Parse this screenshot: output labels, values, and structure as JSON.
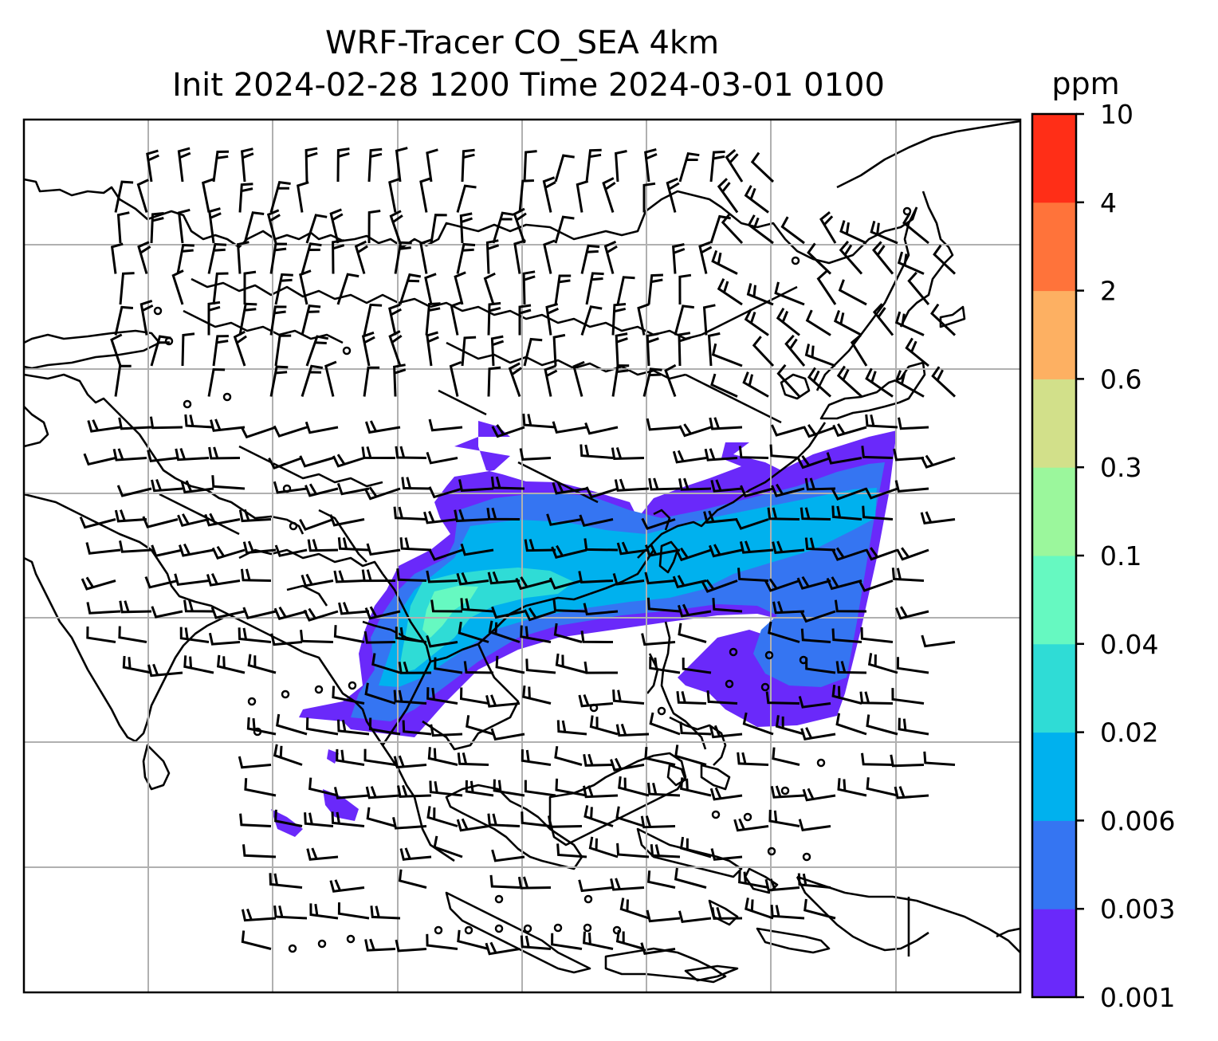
{
  "title": {
    "line1": "WRF-Tracer CO_SEA 4km",
    "line2": "Init 2024-02-28 1200 Time 2024-03-01 0100"
  },
  "colorbar": {
    "unit": "ppm",
    "levels": [
      "0.001",
      "0.003",
      "0.006",
      "0.02",
      "0.04",
      "0.1",
      "0.3",
      "0.6",
      "2",
      "4",
      "10"
    ],
    "colors": [
      "#6a29fa",
      "#3575f2",
      "#00b1ee",
      "#2fdcd6",
      "#66f9c1",
      "#9bf79c",
      "#d2e08a",
      "#fdb062",
      "#ff733a",
      "#ff2e17"
    ]
  },
  "colors": {
    "frame": "#000000",
    "grid": "#b0b0b0",
    "coast": "#000000",
    "barb": "#000000"
  }
}
